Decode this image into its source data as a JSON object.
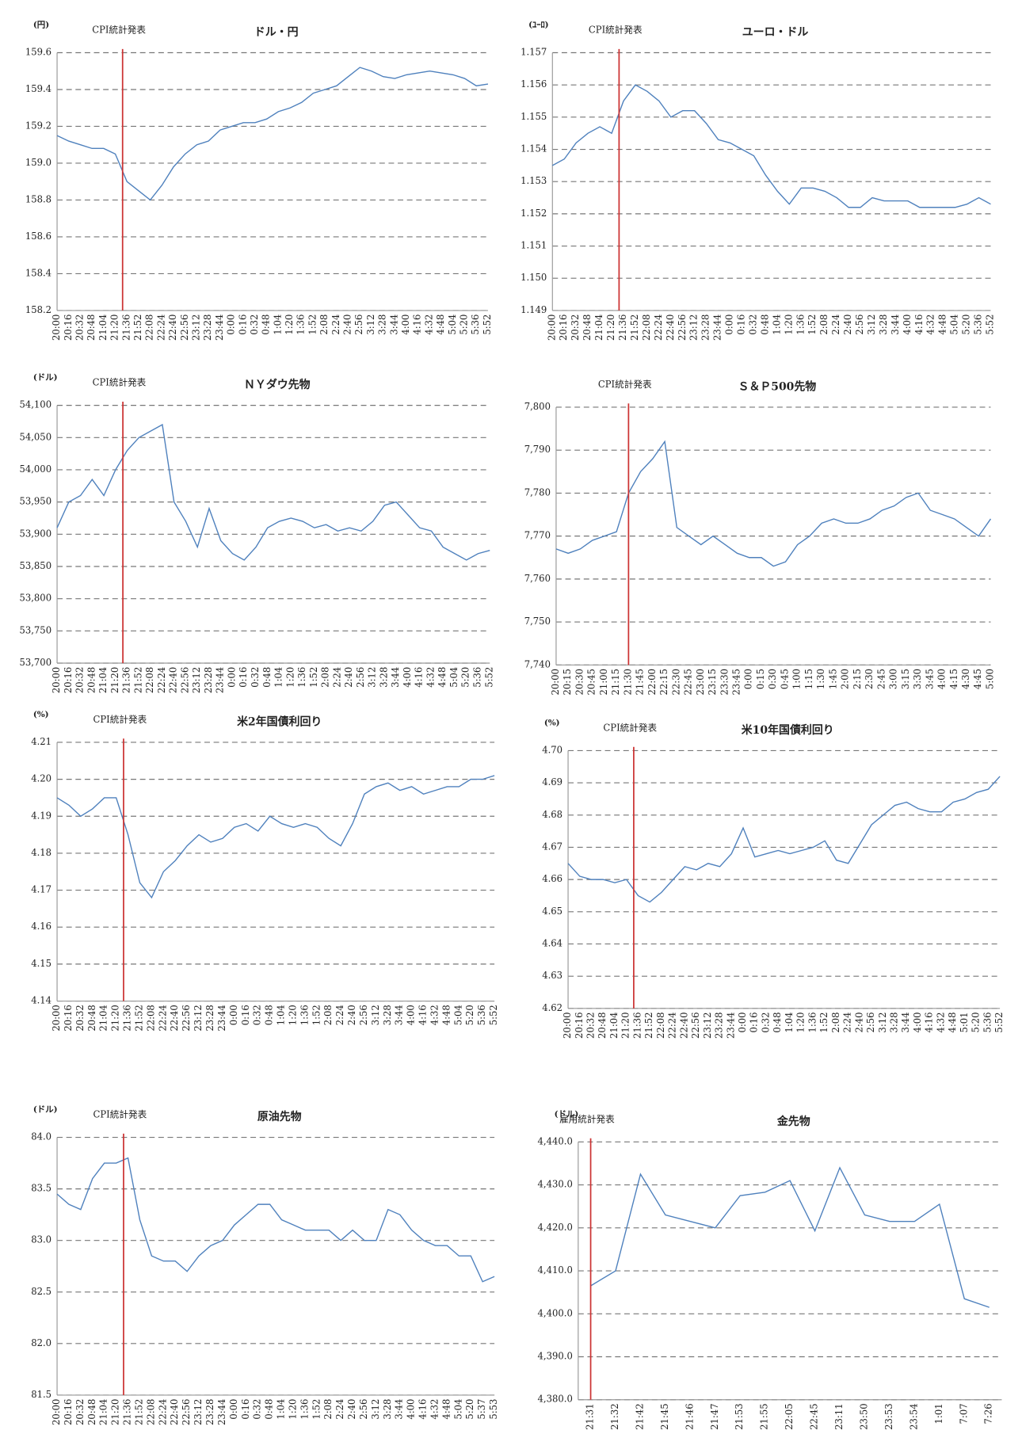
{
  "chart_data": [
    {
      "type": "line",
      "title": "ドル・円",
      "y_unit": "(円)",
      "event": {
        "label": "CPI統計発表",
        "x": "21:30",
        "color": "#cc3333"
      },
      "categories": [
        "20:00",
        "20:16",
        "20:32",
        "20:48",
        "21:04",
        "21:20",
        "21:36",
        "21:52",
        "22:08",
        "22:24",
        "22:40",
        "22:56",
        "23:12",
        "23:28",
        "23:44",
        "0:00",
        "0:16",
        "0:32",
        "0:48",
        "1:04",
        "1:20",
        "1:36",
        "1:52",
        "2:08",
        "2:24",
        "2:40",
        "2:56",
        "3:12",
        "3:28",
        "3:44",
        "4:00",
        "4:16",
        "4:32",
        "4:48",
        "5:04",
        "5:20",
        "5:36",
        "5:52"
      ],
      "values": [
        159.15,
        159.12,
        159.1,
        159.08,
        159.08,
        159.05,
        158.9,
        158.85,
        158.8,
        158.88,
        158.98,
        159.05,
        159.1,
        159.12,
        159.18,
        159.2,
        159.22,
        159.22,
        159.24,
        159.28,
        159.3,
        159.33,
        159.38,
        159.4,
        159.42,
        159.47,
        159.52,
        159.5,
        159.47,
        159.46,
        159.48,
        159.49,
        159.5,
        159.49,
        159.48,
        159.46,
        159.42,
        159.43
      ],
      "color": "#4f81bd",
      "ylim": [
        158.2,
        159.6
      ],
      "yticks": [
        158.2,
        158.4,
        158.6,
        158.8,
        {
          "value": 159,
          "label": "159.0"
        },
        159.2,
        159.4,
        159.6
      ],
      "grid": true
    },
    {
      "type": "line",
      "title": "ユーロ・ドル",
      "y_unit": "(ﾕｰﾛ)",
      "event": {
        "label": "CPI統計発表",
        "x": "21:30",
        "color": "#cc3333"
      },
      "categories": [
        "20:00",
        "20:16",
        "20:32",
        "20:48",
        "21:04",
        "21:20",
        "21:36",
        "21:52",
        "22:08",
        "22:24",
        "22:40",
        "22:56",
        "23:12",
        "23:28",
        "23:44",
        "0:00",
        "0:16",
        "0:32",
        "0:48",
        "1:04",
        "1:20",
        "1:36",
        "1:52",
        "2:08",
        "2:24",
        "2:40",
        "2:56",
        "3:12",
        "3:28",
        "3:44",
        "4:00",
        "4:16",
        "4:32",
        "4:48",
        "5:04",
        "5:20",
        "5:36",
        "5:52"
      ],
      "values": [
        1.1535,
        1.1537,
        1.1542,
        1.1545,
        1.1547,
        1.1545,
        1.1555,
        1.156,
        1.1558,
        1.1555,
        1.155,
        1.1552,
        1.1552,
        1.1548,
        1.1543,
        1.1542,
        1.154,
        1.1538,
        1.1532,
        1.1527,
        1.1523,
        1.1528,
        1.1528,
        1.1527,
        1.1525,
        1.1522,
        1.1522,
        1.1525,
        1.1524,
        1.1524,
        1.1524,
        1.1522,
        1.1522,
        1.1522,
        1.1522,
        1.1523,
        1.1525,
        1.1523
      ],
      "color": "#4f81bd",
      "ylim": [
        1.149,
        1.157
      ],
      "yticks": [
        1.149,
        {
          "value": 1.15,
          "label": "1.150"
        },
        1.151,
        1.152,
        1.153,
        1.154,
        1.155,
        1.156,
        1.157
      ],
      "grid": true
    },
    {
      "type": "line",
      "title": "ＮＹダウ先物",
      "y_unit": "(ドル)",
      "event": {
        "label": "CPI統計発表",
        "x": "21:30",
        "color": "#cc3333"
      },
      "categories": [
        "20:00",
        "20:16",
        "20:32",
        "20:48",
        "21:04",
        "21:20",
        "21:36",
        "21:52",
        "22:08",
        "22:24",
        "22:40",
        "22:56",
        "23:12",
        "23:28",
        "23:44",
        "0:00",
        "0:16",
        "0:32",
        "0:48",
        "1:04",
        "1:20",
        "1:36",
        "1:52",
        "2:08",
        "2:24",
        "2:40",
        "2:56",
        "3:12",
        "3:28",
        "3:44",
        "4:00",
        "4:16",
        "4:32",
        "4:48",
        "5:04",
        "5:20",
        "5:36",
        "5:52"
      ],
      "values": [
        53910,
        53950,
        53960,
        53985,
        53960,
        54000,
        54030,
        54050,
        54060,
        54070,
        53950,
        53920,
        53880,
        53940,
        53890,
        53870,
        53860,
        53880,
        53910,
        53920,
        53925,
        53920,
        53910,
        53915,
        53905,
        53910,
        53905,
        53920,
        53945,
        53950,
        53930,
        53910,
        53905,
        53880,
        53870,
        53860,
        53870,
        53875
      ],
      "color": "#4f81bd",
      "ylim": [
        53700,
        54100
      ],
      "yticks": [
        {
          "value": 53700,
          "label": "53,700"
        },
        {
          "value": 53750,
          "label": "53,750"
        },
        {
          "value": 53800,
          "label": "53,800"
        },
        {
          "value": 53850,
          "label": "53,850"
        },
        {
          "value": 53900,
          "label": "53,900"
        },
        {
          "value": 53950,
          "label": "53,950"
        },
        {
          "value": 54000,
          "label": "54,000"
        },
        {
          "value": 54050,
          "label": "54,050"
        },
        {
          "value": 54100,
          "label": "54,100"
        }
      ],
      "grid": true
    },
    {
      "type": "line",
      "title": "Ｓ＆Ｐ500先物",
      "event": {
        "label": "CPI統計発表",
        "x": "21:30",
        "color": "#cc3333"
      },
      "categories": [
        "20:00",
        "20:15",
        "20:30",
        "20:45",
        "21:00",
        "21:15",
        "21:30",
        "21:45",
        "22:00",
        "22:15",
        "22:30",
        "22:45",
        "23:00",
        "23:15",
        "23:30",
        "23:45",
        "0:00",
        "0:15",
        "0:30",
        "0:45",
        "1:00",
        "1:15",
        "1:30",
        "1:45",
        "2:00",
        "2:15",
        "2:30",
        "2:45",
        "3:00",
        "3:15",
        "3:30",
        "3:45",
        "4:00",
        "4:15",
        "4:30",
        "4:45",
        "5:00"
      ],
      "values": [
        7767,
        7766,
        7767,
        7769,
        7770,
        7771,
        7780,
        7785,
        7788,
        7792,
        7772,
        7770,
        7768,
        7770,
        7768,
        7766,
        7765,
        7765,
        7763,
        7764,
        7768,
        7770,
        7773,
        7774,
        7773,
        7773,
        7774,
        7776,
        7777,
        7779,
        7780,
        7776,
        7775,
        7774,
        7772,
        7770,
        7774
      ],
      "color": "#4f81bd",
      "ylim": [
        7740,
        7800
      ],
      "yticks": [
        {
          "value": 7740,
          "label": "7,740"
        },
        {
          "value": 7750,
          "label": "7,750"
        },
        {
          "value": 7760,
          "label": "7,760"
        },
        {
          "value": 7770,
          "label": "7,770"
        },
        {
          "value": 7780,
          "label": "7,780"
        },
        {
          "value": 7790,
          "label": "7,790"
        },
        {
          "value": 7800,
          "label": "7,800"
        }
      ],
      "grid": true
    },
    {
      "type": "line",
      "title": "米2年国債利回り",
      "y_unit": "(%)",
      "event": {
        "label": "CPI統計発表",
        "x": "21:30",
        "color": "#cc3333"
      },
      "categories": [
        "20:00",
        "20:16",
        "20:32",
        "20:48",
        "21:04",
        "21:20",
        "21:36",
        "21:52",
        "22:08",
        "22:24",
        "22:40",
        "22:56",
        "23:12",
        "23:28",
        "23:44",
        "0:00",
        "0:16",
        "0:32",
        "0:48",
        "1:04",
        "1:20",
        "1:36",
        "1:52",
        "2:08",
        "2:24",
        "2:40",
        "2:56",
        "3:12",
        "3:28",
        "3:44",
        "4:00",
        "4:16",
        "4:32",
        "4:48",
        "5:04",
        "5:20",
        "5:36",
        "5:52"
      ],
      "values": [
        4.195,
        4.193,
        4.19,
        4.192,
        4.195,
        4.195,
        4.185,
        4.172,
        4.168,
        4.175,
        4.178,
        4.182,
        4.185,
        4.183,
        4.184,
        4.187,
        4.188,
        4.186,
        4.19,
        4.188,
        4.187,
        4.188,
        4.187,
        4.184,
        4.182,
        4.188,
        4.196,
        4.198,
        4.199,
        4.197,
        4.198,
        4.196,
        4.197,
        4.198,
        4.198,
        4.2,
        4.2,
        4.201
      ],
      "color": "#4f81bd",
      "ylim": [
        4.14,
        4.21
      ],
      "yticks": [
        4.14,
        4.15,
        4.16,
        4.17,
        4.18,
        4.19,
        {
          "value": 4.2,
          "label": "4.20"
        },
        4.21
      ],
      "grid": true
    },
    {
      "type": "line",
      "title": "米10年国債利回り",
      "y_unit": "(%)",
      "event": {
        "label": "CPI統計発表",
        "x": "21:30",
        "color": "#cc3333"
      },
      "categories": [
        "20:00",
        "20:16",
        "20:32",
        "20:48",
        "21:04",
        "21:20",
        "21:36",
        "21:52",
        "22:08",
        "22:24",
        "22:40",
        "22:56",
        "23:12",
        "23:28",
        "23:44",
        "0:00",
        "0:16",
        "0:32",
        "0:48",
        "1:04",
        "1:20",
        "1:36",
        "1:52",
        "2:08",
        "2:24",
        "2:40",
        "2:56",
        "3:12",
        "3:28",
        "3:44",
        "4:00",
        "4:16",
        "4:32",
        "4:48",
        "5:01",
        "5:20",
        "5:36",
        "5:52"
      ],
      "values": [
        4.665,
        4.661,
        4.66,
        4.66,
        4.659,
        4.66,
        4.655,
        4.653,
        4.656,
        4.66,
        4.664,
        4.663,
        4.665,
        4.664,
        4.668,
        4.676,
        4.667,
        4.668,
        4.669,
        4.668,
        4.669,
        4.67,
        4.672,
        4.666,
        4.665,
        4.671,
        4.677,
        4.68,
        4.683,
        4.684,
        4.682,
        4.681,
        4.681,
        4.684,
        4.685,
        4.687,
        4.688,
        4.692
      ],
      "color": "#4f81bd",
      "ylim": [
        4.62,
        4.7
      ],
      "yticks": [
        4.62,
        4.63,
        4.64,
        4.65,
        4.66,
        4.67,
        4.68,
        4.69,
        {
          "value": 4.7,
          "label": "4.70"
        }
      ],
      "grid": true
    },
    {
      "type": "line",
      "title": "原油先物",
      "y_unit": "(ドル)",
      "event": {
        "label": "CPI統計発表",
        "x": "21:30",
        "color": "#cc3333"
      },
      "categories": [
        "20:00",
        "20:16",
        "20:32",
        "20:48",
        "21:04",
        "21:20",
        "21:36",
        "21:52",
        "22:08",
        "22:24",
        "22:40",
        "22:56",
        "23:12",
        "23:28",
        "23:44",
        "0:00",
        "0:16",
        "0:32",
        "0:48",
        "1:04",
        "1:20",
        "1:36",
        "1:52",
        "2:08",
        "2:24",
        "2:40",
        "2:56",
        "3:12",
        "3:28",
        "3:44",
        "4:00",
        "4:16",
        "4:32",
        "4:48",
        "5:04",
        "5:20",
        "5:37",
        "5:53"
      ],
      "values": [
        83.45,
        83.35,
        83.3,
        83.6,
        83.75,
        83.75,
        83.8,
        83.2,
        82.85,
        82.8,
        82.8,
        82.7,
        82.85,
        82.95,
        83.0,
        83.15,
        83.25,
        83.35,
        83.35,
        83.2,
        83.15,
        83.1,
        83.1,
        83.1,
        83.0,
        83.1,
        83.0,
        83.0,
        83.3,
        83.25,
        83.1,
        83.0,
        82.95,
        82.95,
        82.85,
        82.85,
        82.6,
        82.65
      ],
      "color": "#4f81bd",
      "ylim": [
        81.5,
        84.0
      ],
      "yticks": [
        81.5,
        {
          "value": 82,
          "label": "82.0"
        },
        82.5,
        {
          "value": 83,
          "label": "83.0"
        },
        83.5,
        {
          "value": 84,
          "label": "84.0"
        }
      ],
      "grid": true
    },
    {
      "type": "line",
      "title": "金先物",
      "y_unit": "(ドル)",
      "event": {
        "label": "雇用統計発表",
        "x": "21:31",
        "color": "#cc3333"
      },
      "categories": [
        "21:31",
        "21:32",
        "21:42",
        "21:45",
        "21:46",
        "21:47",
        "21:53",
        "21:55",
        "22:05",
        "22:45",
        "23:11",
        "23:50",
        "23:53",
        "23:54",
        "1:01",
        "7:07",
        "7:26"
      ],
      "values": [
        4406.5,
        4410,
        4432.5,
        4423,
        4421.5,
        4420,
        4427.5,
        4428.3,
        4431,
        4419.3,
        4434,
        4423,
        4421.5,
        4421.5,
        4425.5,
        4403.5,
        4401.5
      ],
      "color": "#4f81bd",
      "ylim": [
        4380,
        4440
      ],
      "yticks": [
        {
          "value": 4380,
          "label": "4,380.0"
        },
        {
          "value": 4390,
          "label": "4,390.0"
        },
        {
          "value": 4400,
          "label": "4,400.0"
        },
        {
          "value": 4410,
          "label": "4,410.0"
        },
        {
          "value": 4420,
          "label": "4,420.0"
        },
        {
          "value": 4430,
          "label": "4,430.0"
        },
        {
          "value": 4440,
          "label": "4,440.0"
        }
      ],
      "grid": true
    }
  ]
}
